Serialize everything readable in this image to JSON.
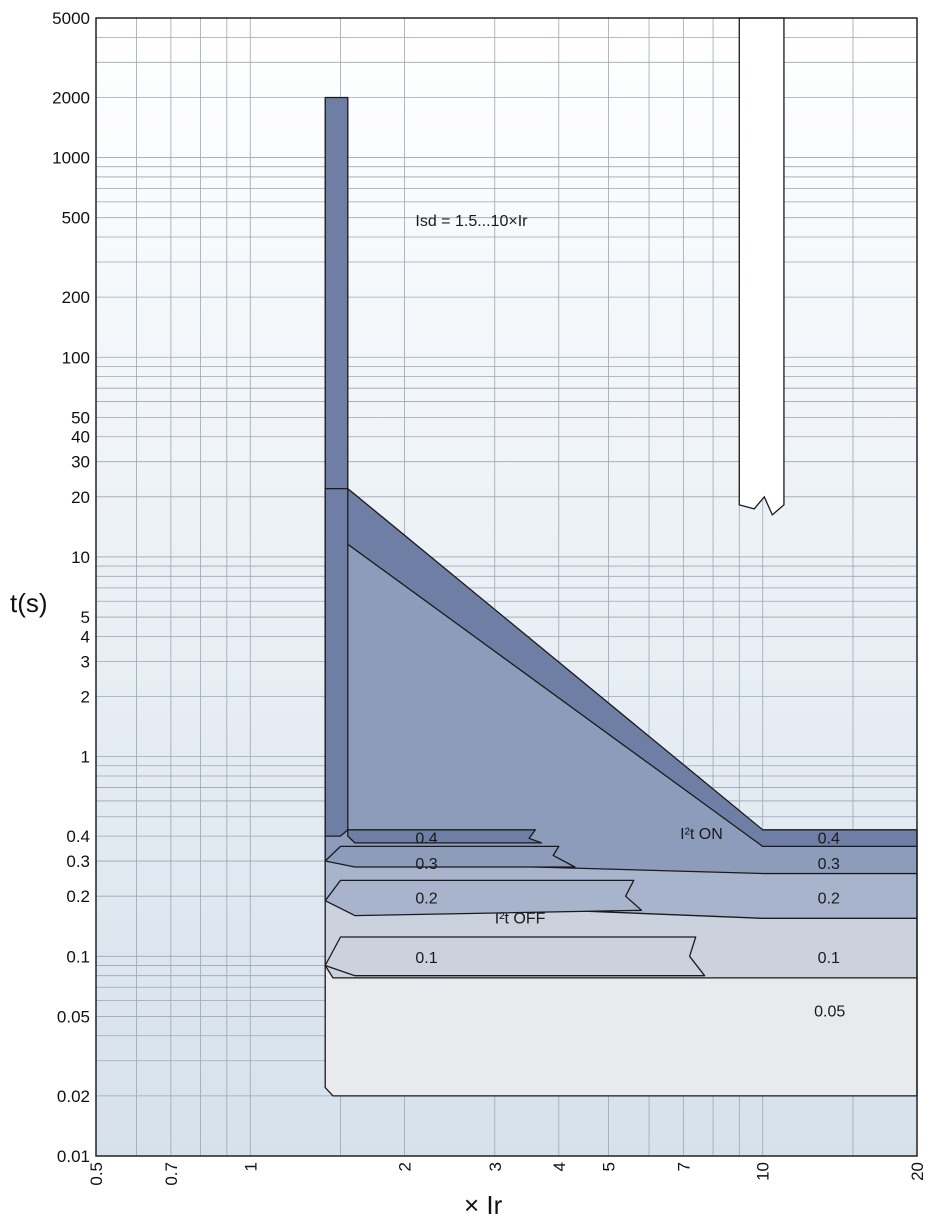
{
  "chart_data": {
    "type": "line",
    "title": "",
    "xlabel": "× Ir",
    "ylabel": "t(s)",
    "x_scale": "log",
    "y_scale": "log",
    "xlim": [
      0.5,
      20
    ],
    "ylim": [
      0.01,
      5000
    ],
    "grid": true,
    "x_ticks": [
      {
        "value": 0.5,
        "label": "0.5"
      },
      {
        "value": 0.7,
        "label": "0.7"
      },
      {
        "value": 1,
        "label": "1"
      },
      {
        "value": 2,
        "label": "2"
      },
      {
        "value": 3,
        "label": "3"
      },
      {
        "value": 4,
        "label": "4"
      },
      {
        "value": 5,
        "label": "5"
      },
      {
        "value": 7,
        "label": "7"
      },
      {
        "value": 10,
        "label": "10"
      },
      {
        "value": 20,
        "label": "20"
      }
    ],
    "y_ticks": [
      {
        "value": 0.01,
        "label": "0.01"
      },
      {
        "value": 0.02,
        "label": "0.02"
      },
      {
        "value": 0.05,
        "label": "0.05"
      },
      {
        "value": 0.1,
        "label": "0.1"
      },
      {
        "value": 0.2,
        "label": "0.2"
      },
      {
        "value": 0.3,
        "label": "0.3"
      },
      {
        "value": 0.4,
        "label": "0.4"
      },
      {
        "value": 1,
        "label": "1"
      },
      {
        "value": 2,
        "label": "2"
      },
      {
        "value": 3,
        "label": "3"
      },
      {
        "value": 4,
        "label": "4"
      },
      {
        "value": 5,
        "label": "5"
      },
      {
        "value": 10,
        "label": "10"
      },
      {
        "value": 20,
        "label": "20"
      },
      {
        "value": 30,
        "label": "30"
      },
      {
        "value": 40,
        "label": "40"
      },
      {
        "value": 50,
        "label": "50"
      },
      {
        "value": 100,
        "label": "100"
      },
      {
        "value": 200,
        "label": "200"
      },
      {
        "value": 500,
        "label": "500"
      },
      {
        "value": 1000,
        "label": "1000"
      },
      {
        "value": 2000,
        "label": "2000"
      },
      {
        "value": 5000,
        "label": "5000"
      }
    ],
    "x_grid": [
      0.5,
      0.6,
      0.7,
      0.8,
      0.9,
      1,
      1.5,
      2,
      3,
      4,
      5,
      6,
      7,
      8,
      9,
      10,
      15,
      20
    ],
    "y_grid_major": [
      0.01,
      0.02,
      0.03,
      0.04,
      0.05,
      0.06,
      0.07,
      0.08,
      0.09,
      0.1,
      0.2,
      0.3,
      0.4,
      0.5,
      0.6,
      0.7,
      0.8,
      0.9,
      1,
      2,
      3,
      4,
      5,
      6,
      7,
      8,
      9,
      10,
      20,
      30,
      40,
      50,
      60,
      70,
      80,
      90,
      100,
      200,
      300,
      400,
      500,
      600,
      700,
      800,
      900,
      1000,
      2000,
      3000,
      4000,
      5000
    ],
    "colors": {
      "background_top": "#ffffff",
      "background_bottom": "#d6e1ec",
      "grid": "#9aa7b4",
      "band_04": "#6f7ea4",
      "band_03": "#8e9cbc",
      "band_02": "#a8b4cc",
      "band_01": "#cbd2de",
      "band_005": "#e8eaee",
      "outline": "#1a1a1a"
    },
    "annotations": [
      {
        "text": "Isd = 1.5...10×Ir",
        "x": 2.1,
        "y": 480
      },
      {
        "text": "I²t ON",
        "x": 6.9,
        "y": 0.41
      },
      {
        "text": "I²t OFF",
        "x": 3.0,
        "y": 0.155
      }
    ],
    "band_labels": [
      {
        "text": "0.4",
        "x": 2.1,
        "y": 0.39
      },
      {
        "text": "0.3",
        "x": 2.1,
        "y": 0.29
      },
      {
        "text": "0.2",
        "x": 2.1,
        "y": 0.195
      },
      {
        "text": "0.1",
        "x": 2.1,
        "y": 0.098
      },
      {
        "text": "0.4",
        "x": 12.8,
        "y": 0.39
      },
      {
        "text": "0.3",
        "x": 12.8,
        "y": 0.29
      },
      {
        "text": "0.2",
        "x": 12.8,
        "y": 0.195
      },
      {
        "text": "0.1",
        "x": 12.8,
        "y": 0.098
      },
      {
        "text": "0.05",
        "x": 12.6,
        "y": 0.053
      }
    ],
    "series": [
      {
        "label": "0.4",
        "upper": [
          [
            1.4,
            2000
          ],
          [
            1.4,
            22
          ],
          [
            10,
            0.43
          ],
          [
            20,
            0.43
          ]
        ],
        "lower": [
          [
            1.55,
            2000
          ],
          [
            1.55,
            0.43
          ],
          [
            10,
            0.355
          ],
          [
            20,
            0.355
          ]
        ]
      },
      {
        "label": "0.3",
        "upper": [
          [
            1.4,
            16
          ],
          [
            10,
            0.355
          ],
          [
            20,
            0.355
          ]
        ],
        "lower": [
          [
            1.4,
            0.3
          ],
          [
            10,
            0.26
          ],
          [
            20,
            0.26
          ]
        ]
      },
      {
        "label": "0.2",
        "upper": [
          [
            1.4,
            11
          ],
          [
            10,
            0.26
          ],
          [
            20,
            0.26
          ]
        ],
        "lower": [
          [
            1.4,
            0.19
          ],
          [
            10,
            0.155
          ],
          [
            20,
            0.155
          ]
        ]
      },
      {
        "label": "0.1",
        "upper": [
          [
            1.4,
            8
          ],
          [
            10,
            0.155
          ],
          [
            20,
            0.155
          ]
        ],
        "lower": [
          [
            1.4,
            0.09
          ],
          [
            10,
            0.078
          ],
          [
            20,
            0.078
          ]
        ]
      },
      {
        "label": "0.05",
        "upper": [
          [
            1.4,
            0.09
          ],
          [
            20,
            0.078
          ]
        ],
        "lower": [
          [
            1.4,
            0.02
          ],
          [
            20,
            0.02
          ]
        ]
      }
    ],
    "instantaneous_region": {
      "x_range": [
        9,
        11
      ],
      "y_range": [
        20,
        5000
      ]
    }
  }
}
